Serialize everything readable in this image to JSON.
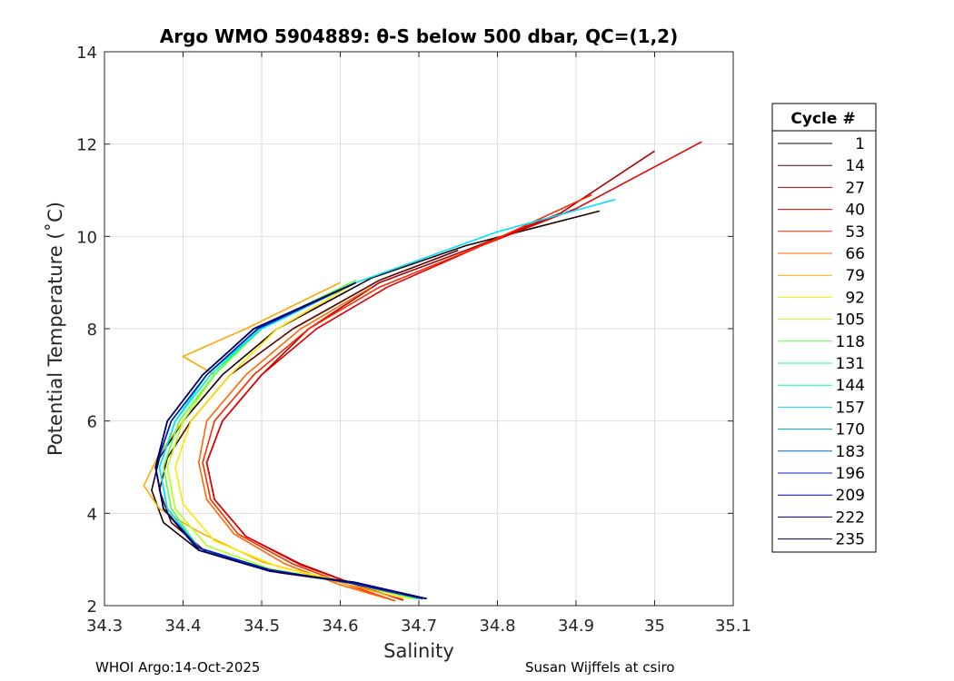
{
  "chart_data": {
    "type": "line",
    "title": "Argo WMO 5904889: θ-S below 500 dbar,  QC=(1,2)",
    "xlabel": "Salinity",
    "ylabel": "Potential Temperature (˚C)",
    "xlim": [
      34.3,
      35.1
    ],
    "ylim": [
      2,
      14
    ],
    "xticks": [
      "34.3",
      "34.4",
      "34.5",
      "34.6",
      "34.7",
      "34.8",
      "34.9",
      "35",
      "35.1"
    ],
    "yticks": [
      "2",
      "4",
      "6",
      "8",
      "10",
      "12",
      "14"
    ],
    "grid": true,
    "legend_title": "Cycle #",
    "legend_position": "right-outside",
    "series": [
      {
        "name": "1",
        "color": "#1a0000",
        "points": [
          [
            34.705,
            2.15
          ],
          [
            34.62,
            2.5
          ],
          [
            34.52,
            2.75
          ],
          [
            34.42,
            3.2
          ],
          [
            34.375,
            3.8
          ],
          [
            34.36,
            4.5
          ],
          [
            34.37,
            5.2
          ],
          [
            34.4,
            6.0
          ],
          [
            34.45,
            7.0
          ],
          [
            34.52,
            8.0
          ],
          [
            34.64,
            9.1
          ],
          [
            34.76,
            9.8
          ],
          [
            34.85,
            10.2
          ],
          [
            34.93,
            10.55
          ]
        ]
      },
      {
        "name": "14",
        "color": "#600000",
        "points": [
          [
            34.7,
            2.15
          ],
          [
            34.62,
            2.48
          ],
          [
            34.52,
            2.72
          ],
          [
            34.43,
            3.15
          ],
          [
            34.385,
            3.8
          ],
          [
            34.37,
            4.5
          ],
          [
            34.38,
            5.2
          ],
          [
            34.41,
            6.0
          ],
          [
            34.46,
            7.0
          ],
          [
            34.54,
            8.0
          ],
          [
            34.65,
            9.05
          ],
          [
            34.75,
            9.7
          ]
        ]
      },
      {
        "name": "27",
        "color": "#b00000",
        "points": [
          [
            34.68,
            2.12
          ],
          [
            34.62,
            2.45
          ],
          [
            34.55,
            2.9
          ],
          [
            34.48,
            3.5
          ],
          [
            34.44,
            4.3
          ],
          [
            34.43,
            5.1
          ],
          [
            34.45,
            6.0
          ],
          [
            34.5,
            7.0
          ],
          [
            34.56,
            8.0
          ],
          [
            34.65,
            9.0
          ],
          [
            34.76,
            9.7
          ],
          [
            34.88,
            10.5
          ],
          [
            35.0,
            11.85
          ]
        ]
      },
      {
        "name": "40",
        "color": "#e00000",
        "points": [
          [
            34.68,
            2.12
          ],
          [
            34.62,
            2.45
          ],
          [
            34.55,
            2.88
          ],
          [
            34.48,
            3.5
          ],
          [
            34.44,
            4.3
          ],
          [
            34.43,
            5.1
          ],
          [
            34.45,
            6.0
          ],
          [
            34.5,
            7.0
          ],
          [
            34.57,
            8.0
          ],
          [
            34.66,
            8.9
          ],
          [
            34.78,
            9.8
          ],
          [
            34.9,
            10.6
          ],
          [
            35.06,
            12.05
          ]
        ]
      },
      {
        "name": "53",
        "color": "#ff2a00",
        "points": [
          [
            34.67,
            2.1
          ],
          [
            34.61,
            2.45
          ],
          [
            34.54,
            2.9
          ],
          [
            34.47,
            3.55
          ],
          [
            34.435,
            4.3
          ],
          [
            34.425,
            5.1
          ],
          [
            34.44,
            6.0
          ],
          [
            34.49,
            7.0
          ],
          [
            34.56,
            8.0
          ],
          [
            34.65,
            8.9
          ],
          [
            34.78,
            9.8
          ],
          [
            34.92,
            10.9
          ]
        ]
      },
      {
        "name": "66",
        "color": "#ff6a00",
        "points": [
          [
            34.67,
            2.1
          ],
          [
            34.6,
            2.45
          ],
          [
            34.53,
            2.9
          ],
          [
            34.465,
            3.55
          ],
          [
            34.43,
            4.3
          ],
          [
            34.42,
            5.1
          ],
          [
            34.43,
            6.0
          ],
          [
            34.48,
            7.0
          ],
          [
            34.55,
            8.0
          ],
          [
            34.64,
            8.9
          ]
        ]
      },
      {
        "name": "79",
        "color": "#ffa800",
        "points": [
          [
            34.68,
            2.15
          ],
          [
            34.6,
            2.5
          ],
          [
            34.5,
            2.95
          ],
          [
            34.42,
            3.6
          ],
          [
            34.37,
            4.1
          ],
          [
            34.35,
            4.6
          ],
          [
            34.37,
            5.3
          ],
          [
            34.4,
            6.0
          ],
          [
            34.44,
            7.0
          ],
          [
            34.4,
            7.4
          ],
          [
            34.48,
            8.0
          ],
          [
            34.6,
            9.0
          ]
        ]
      },
      {
        "name": "92",
        "color": "#ffe800",
        "points": [
          [
            34.69,
            2.15
          ],
          [
            34.61,
            2.5
          ],
          [
            34.52,
            2.85
          ],
          [
            34.44,
            3.4
          ],
          [
            34.4,
            4.2
          ],
          [
            34.39,
            5.0
          ],
          [
            34.41,
            6.0
          ],
          [
            34.46,
            7.0
          ],
          [
            34.52,
            8.0
          ],
          [
            34.62,
            9.0
          ]
        ]
      },
      {
        "name": "105",
        "color": "#b4ff1a",
        "points": [
          [
            34.695,
            2.15
          ],
          [
            34.61,
            2.5
          ],
          [
            34.51,
            2.8
          ],
          [
            34.43,
            3.3
          ],
          [
            34.39,
            4.1
          ],
          [
            34.38,
            5.0
          ],
          [
            34.4,
            6.0
          ],
          [
            34.44,
            7.0
          ],
          [
            34.5,
            8.0
          ],
          [
            34.62,
            9.0
          ]
        ]
      },
      {
        "name": "118",
        "color": "#5aff3c",
        "points": [
          [
            34.7,
            2.15
          ],
          [
            34.61,
            2.5
          ],
          [
            34.51,
            2.78
          ],
          [
            34.42,
            3.25
          ],
          [
            34.385,
            4.1
          ],
          [
            34.375,
            5.0
          ],
          [
            34.395,
            6.0
          ],
          [
            34.44,
            7.0
          ],
          [
            34.5,
            8.05
          ],
          [
            34.62,
            9.05
          ]
        ]
      },
      {
        "name": "131",
        "color": "#1aff6e",
        "points": [
          [
            34.7,
            2.15
          ],
          [
            34.61,
            2.5
          ],
          [
            34.51,
            2.78
          ],
          [
            34.42,
            3.25
          ],
          [
            34.38,
            4.1
          ],
          [
            34.37,
            5.0
          ],
          [
            34.39,
            6.0
          ],
          [
            34.435,
            7.0
          ],
          [
            34.5,
            8.0
          ],
          [
            34.62,
            9.0
          ]
        ]
      },
      {
        "name": "144",
        "color": "#00ffb0",
        "points": [
          [
            34.7,
            2.15
          ],
          [
            34.61,
            2.5
          ],
          [
            34.51,
            2.78
          ],
          [
            34.42,
            3.25
          ],
          [
            34.38,
            4.1
          ],
          [
            34.37,
            5.0
          ],
          [
            34.39,
            6.0
          ],
          [
            34.435,
            7.0
          ],
          [
            34.5,
            8.0
          ],
          [
            34.62,
            9.0
          ]
        ]
      },
      {
        "name": "157",
        "color": "#00e0ff",
        "points": [
          [
            34.705,
            2.15
          ],
          [
            34.61,
            2.5
          ],
          [
            34.51,
            2.78
          ],
          [
            34.42,
            3.25
          ],
          [
            34.38,
            4.1
          ],
          [
            34.37,
            5.0
          ],
          [
            34.39,
            6.0
          ],
          [
            34.43,
            7.0
          ],
          [
            34.5,
            8.0
          ],
          [
            34.62,
            9.0
          ],
          [
            34.8,
            10.1
          ],
          [
            34.95,
            10.8
          ]
        ]
      },
      {
        "name": "170",
        "color": "#00a0c8",
        "points": [
          [
            34.705,
            2.15
          ],
          [
            34.61,
            2.5
          ],
          [
            34.51,
            2.78
          ],
          [
            34.42,
            3.25
          ],
          [
            34.375,
            4.1
          ],
          [
            34.365,
            5.0
          ],
          [
            34.385,
            6.0
          ],
          [
            34.43,
            7.0
          ],
          [
            34.495,
            8.0
          ],
          [
            34.62,
            9.0
          ]
        ]
      },
      {
        "name": "183",
        "color": "#0060c0",
        "points": [
          [
            34.705,
            2.15
          ],
          [
            34.61,
            2.5
          ],
          [
            34.51,
            2.78
          ],
          [
            34.42,
            3.25
          ],
          [
            34.375,
            4.1
          ],
          [
            34.365,
            5.0
          ],
          [
            34.385,
            6.0
          ],
          [
            34.43,
            7.0
          ],
          [
            34.495,
            8.0
          ],
          [
            34.62,
            9.0
          ]
        ]
      },
      {
        "name": "196",
        "color": "#0020c0",
        "points": [
          [
            34.705,
            2.15
          ],
          [
            34.61,
            2.5
          ],
          [
            34.51,
            2.78
          ],
          [
            34.42,
            3.25
          ],
          [
            34.375,
            4.1
          ],
          [
            34.365,
            5.0
          ],
          [
            34.385,
            6.0
          ],
          [
            34.43,
            7.0
          ],
          [
            34.495,
            8.0
          ],
          [
            34.62,
            9.0
          ]
        ]
      },
      {
        "name": "209",
        "color": "#00009a",
        "points": [
          [
            34.71,
            2.15
          ],
          [
            34.62,
            2.5
          ],
          [
            34.51,
            2.75
          ],
          [
            34.42,
            3.2
          ],
          [
            34.375,
            4.1
          ],
          [
            34.365,
            5.0
          ],
          [
            34.38,
            6.0
          ],
          [
            34.425,
            7.0
          ],
          [
            34.49,
            8.0
          ],
          [
            34.62,
            9.0
          ]
        ]
      },
      {
        "name": "222",
        "color": "#000078",
        "points": [
          [
            34.71,
            2.15
          ],
          [
            34.62,
            2.5
          ],
          [
            34.51,
            2.75
          ],
          [
            34.42,
            3.2
          ],
          [
            34.375,
            4.1
          ],
          [
            34.365,
            5.0
          ],
          [
            34.38,
            6.0
          ],
          [
            34.425,
            7.0
          ],
          [
            34.49,
            8.0
          ],
          [
            34.62,
            9.0
          ]
        ]
      },
      {
        "name": "235",
        "color": "#000060",
        "points": [
          [
            34.71,
            2.15
          ],
          [
            34.62,
            2.5
          ],
          [
            34.51,
            2.75
          ],
          [
            34.42,
            3.2
          ],
          [
            34.375,
            4.1
          ],
          [
            34.365,
            5.0
          ],
          [
            34.38,
            6.0
          ],
          [
            34.425,
            7.0
          ],
          [
            34.49,
            8.0
          ],
          [
            34.62,
            9.0
          ]
        ]
      }
    ]
  },
  "footer": {
    "left": "WHOI Argo:14-Oct-2025",
    "right": "Susan Wijffels at csiro"
  }
}
